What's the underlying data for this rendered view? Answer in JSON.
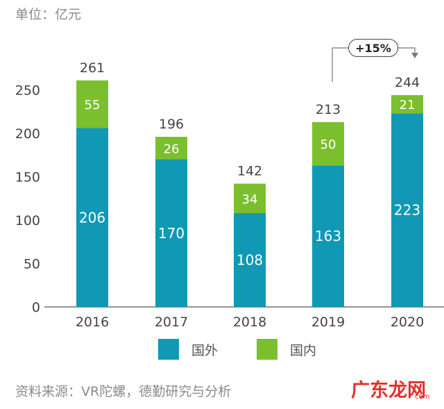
{
  "unit_label": "单位：亿元",
  "source_label": "资料来源：VR陀螺，德勤研究与分析",
  "watermark": {
    "text": "广东龙网",
    "sub": "com"
  },
  "growth_badge": "+15%",
  "colors": {
    "foreign": "#1098B5",
    "domestic": "#7CBF2E",
    "axis": "#555555",
    "text": "#444444"
  },
  "chart_data": {
    "type": "bar",
    "stacked": true,
    "title": "",
    "xlabel": "",
    "ylabel": "亿元",
    "ylim": [
      0,
      260
    ],
    "yticks": [
      "0",
      "50",
      "100",
      "150",
      "200",
      "250"
    ],
    "categories": [
      "2016",
      "2017",
      "2018",
      "2019",
      "2020"
    ],
    "series": [
      {
        "name": "国外",
        "values": [
          206,
          170,
          108,
          163,
          223
        ],
        "labels": [
          "206",
          "170",
          "108",
          "163",
          "223"
        ]
      },
      {
        "name": "国内",
        "values": [
          55,
          26,
          34,
          50,
          21
        ],
        "labels": [
          "55",
          "26",
          "34",
          "50",
          "21"
        ]
      }
    ],
    "totals": [
      "261",
      "196",
      "142",
      "213",
      "244"
    ],
    "legend": "bottom"
  }
}
